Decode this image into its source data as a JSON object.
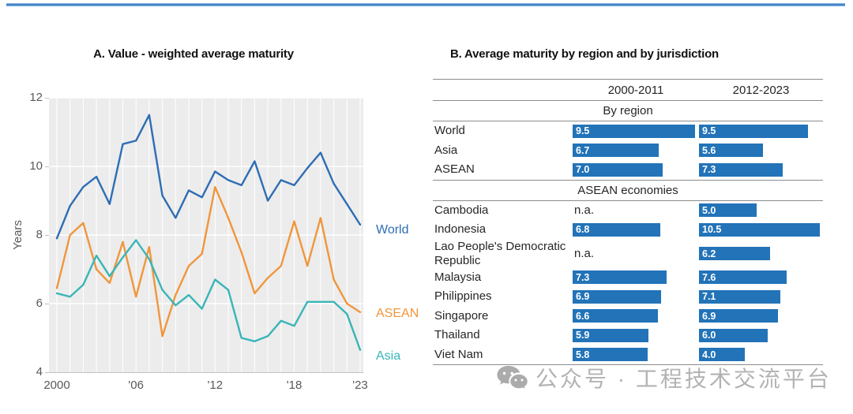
{
  "watermark": {
    "text": "公众号 · 工程技术交流平台"
  },
  "accent_colors": {
    "top_rule_blue": "#4587CC",
    "table_bar_blue": "#2273B8",
    "world_blue": "#2E6DB4",
    "asean_orange": "#F0963C",
    "asia_teal": "#3AB5B8"
  },
  "chart_data": [
    {
      "type": "line",
      "title": "A. Value - weighted average maturity",
      "xlabel": "",
      "ylabel": "Years",
      "ylim": [
        4,
        12
      ],
      "yticks": [
        12,
        10,
        8,
        6,
        4
      ],
      "xtick_labels": [
        "2000",
        "'06",
        "'12",
        "'18",
        "'23"
      ],
      "xtick_years": [
        2000,
        2006,
        2012,
        2018,
        2023
      ],
      "grid": true,
      "plot_background": "#ECECEC",
      "legend_position": "right-end-labels",
      "x": [
        2000,
        2001,
        2002,
        2003,
        2004,
        2005,
        2006,
        2007,
        2008,
        2009,
        2010,
        2011,
        2012,
        2013,
        2014,
        2015,
        2016,
        2017,
        2018,
        2019,
        2020,
        2021,
        2022,
        2023
      ],
      "series": [
        {
          "name": "World",
          "color": "#2E6DB4",
          "values": [
            7.9,
            8.85,
            9.4,
            9.7,
            8.9,
            10.65,
            10.75,
            11.5,
            9.15,
            8.5,
            9.3,
            9.1,
            9.85,
            9.6,
            9.45,
            10.15,
            9.0,
            9.6,
            9.45,
            9.95,
            10.4,
            9.5,
            8.9,
            8.3
          ]
        },
        {
          "name": "ASEAN",
          "color": "#F0963C",
          "values": [
            6.45,
            8.0,
            8.35,
            7.0,
            6.6,
            7.8,
            6.2,
            7.65,
            5.05,
            6.25,
            7.1,
            7.45,
            9.4,
            8.5,
            7.5,
            6.3,
            6.75,
            7.1,
            8.4,
            7.1,
            8.5,
            6.7,
            6.0,
            5.75
          ]
        },
        {
          "name": "Asia",
          "color": "#3AB5B8",
          "values": [
            6.3,
            6.2,
            6.55,
            7.4,
            6.8,
            7.35,
            7.85,
            7.3,
            6.4,
            5.95,
            6.25,
            5.85,
            6.7,
            6.4,
            5.0,
            4.9,
            5.05,
            5.5,
            5.35,
            6.05,
            6.05,
            6.05,
            5.7,
            4.65
          ]
        }
      ]
    },
    {
      "type": "bar",
      "title": "B. Average maturity by region and by jurisdiction",
      "columns": [
        "2000-2011",
        "2012-2023"
      ],
      "bar_color": "#2273B8",
      "na_text": "n.a.",
      "sections": [
        {
          "header": "By region",
          "rows": [
            {
              "label": "World",
              "values": [
                9.5,
                9.5
              ]
            },
            {
              "label": "Asia",
              "values": [
                6.7,
                5.6
              ]
            },
            {
              "label": "ASEAN",
              "values": [
                7.0,
                7.3
              ]
            }
          ]
        },
        {
          "header": "ASEAN economies",
          "rows": [
            {
              "label": "Cambodia",
              "values": [
                null,
                5.0
              ]
            },
            {
              "label": "Indonesia",
              "values": [
                6.8,
                10.5
              ]
            },
            {
              "label": "Lao People's Democratic Republic",
              "values": [
                null,
                6.2
              ]
            },
            {
              "label": "Malaysia",
              "values": [
                7.3,
                7.6
              ]
            },
            {
              "label": "Philippines",
              "values": [
                6.9,
                7.1
              ]
            },
            {
              "label": "Singapore",
              "values": [
                6.6,
                6.9
              ]
            },
            {
              "label": "Thailand",
              "values": [
                5.9,
                6.0
              ]
            },
            {
              "label": "Viet Nam",
              "values": [
                5.8,
                4.0
              ]
            }
          ]
        }
      ]
    }
  ]
}
